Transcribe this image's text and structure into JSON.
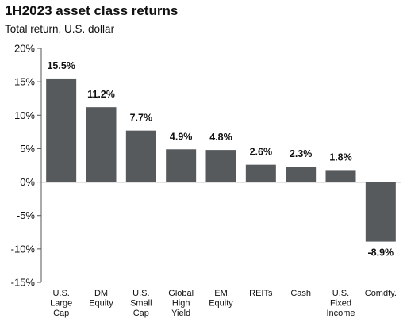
{
  "chart_data": {
    "type": "bar",
    "title": "1H2023 asset class returns",
    "subtitle": "Total return, U.S. dollar",
    "categories": [
      "U.S.\nLarge\nCap",
      "DM\nEquity",
      "U.S.\nSmall\nCap",
      "Global\nHigh\nYield",
      "EM\nEquity",
      "REITs",
      "Cash",
      "U.S.\nFixed\nIncome",
      "Comdty."
    ],
    "values": [
      15.5,
      11.2,
      7.7,
      4.9,
      4.8,
      2.6,
      2.3,
      1.8,
      -8.9
    ],
    "value_labels": [
      "15.5%",
      "11.2%",
      "7.7%",
      "4.9%",
      "4.8%",
      "2.6%",
      "2.3%",
      "1.8%",
      "-8.9%"
    ],
    "yticks": [
      20,
      15,
      10,
      5,
      0,
      -5,
      -10,
      -15
    ],
    "ytick_labels": [
      "20%",
      "15%",
      "10%",
      "5%",
      "0%",
      "-5%",
      "-10%",
      "-15%"
    ],
    "ylim": [
      -15,
      20
    ],
    "xlabel": "",
    "ylabel": "",
    "grid": false,
    "bar_color": "#575A5C"
  }
}
